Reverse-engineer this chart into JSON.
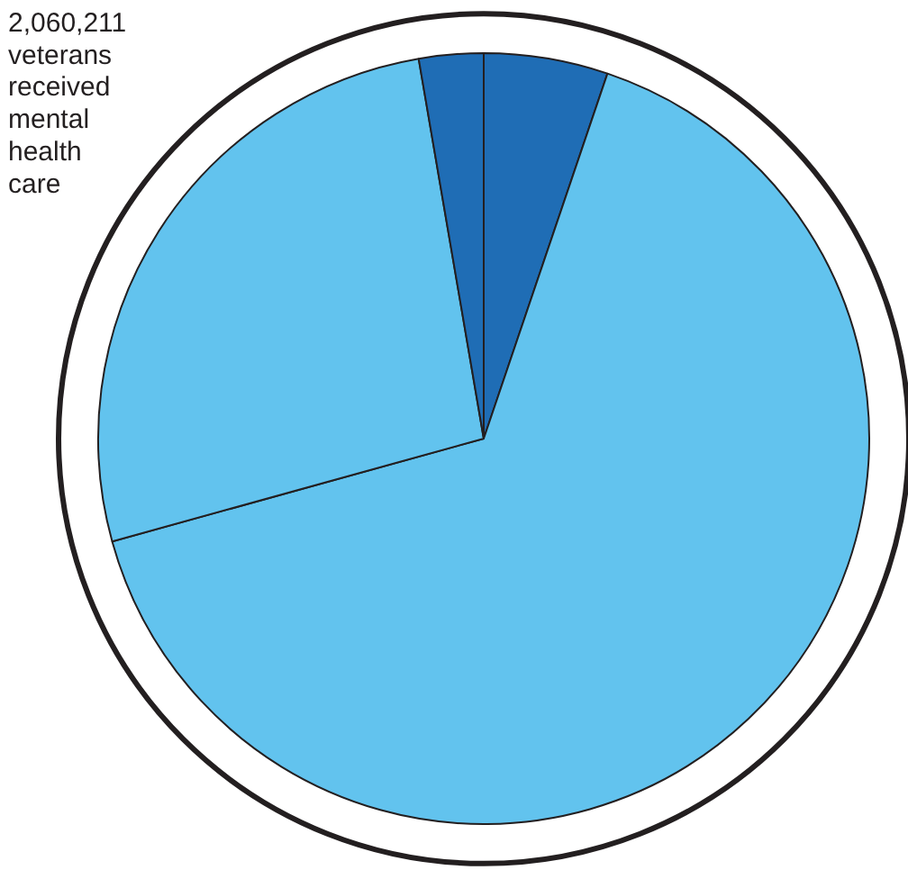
{
  "chart_data": {
    "type": "pie",
    "categories": [
      null,
      null,
      null,
      null
    ],
    "values": [
      5.2,
      65.5,
      26.6,
      2.7
    ],
    "colors": [
      "#1f6db5",
      "#62c3ee",
      "#62c3ee",
      "#1f6db5"
    ],
    "annotations": [
      "2,060,211\nveterans\nreceived\nmental\nhealth\ncare"
    ]
  }
}
